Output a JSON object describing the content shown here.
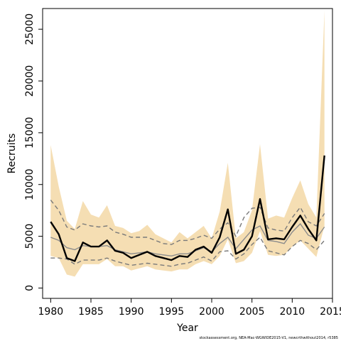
{
  "chart_data": {
    "type": "line",
    "title": "",
    "xlabel": "Year",
    "ylabel": "Recruits",
    "xlim": [
      1979,
      2015
    ],
    "ylim": [
      -1000,
      27000
    ],
    "x_ticks": [
      1980,
      1985,
      1990,
      1995,
      2000,
      2005,
      2010,
      2015
    ],
    "y_ticks": [
      0,
      5000,
      10000,
      15000,
      20000,
      25000
    ],
    "grid": false,
    "legend": "none",
    "x": [
      1980,
      1981,
      1982,
      1983,
      1984,
      1985,
      1986,
      1987,
      1988,
      1989,
      1990,
      1991,
      1992,
      1993,
      1994,
      1995,
      1996,
      1997,
      1998,
      1999,
      2000,
      2001,
      2002,
      2003,
      2004,
      2005,
      2006,
      2007,
      2008,
      2009,
      2010,
      2011,
      2012,
      2013,
      2014
    ],
    "series": [
      {
        "role": "estimate",
        "values": [
          6400,
          5200,
          2900,
          2600,
          4400,
          4000,
          4000,
          4600,
          3600,
          3400,
          2900,
          3200,
          3500,
          3100,
          2900,
          2700,
          3100,
          3000,
          3700,
          4000,
          3400,
          4900,
          7600,
          3300,
          3700,
          5000,
          8600,
          4700,
          4800,
          4700,
          5900,
          7000,
          5700,
          4600,
          12800
        ]
      },
      {
        "role": "band-upper",
        "values": [
          13800,
          9800,
          6500,
          5700,
          8400,
          7100,
          6800,
          8000,
          6000,
          5800,
          5300,
          5500,
          6100,
          5200,
          4800,
          4400,
          5400,
          4800,
          5400,
          6000,
          4800,
          7400,
          12100,
          4800,
          5400,
          7500,
          13900,
          6700,
          7000,
          6800,
          8700,
          10400,
          8100,
          6800,
          26800
        ]
      },
      {
        "role": "band-lower",
        "values": [
          3100,
          2900,
          1300,
          1100,
          2300,
          2300,
          2300,
          2800,
          2100,
          2100,
          1700,
          1900,
          2100,
          1800,
          1700,
          1600,
          1800,
          1800,
          2300,
          2600,
          2300,
          3100,
          4700,
          2400,
          2600,
          3400,
          5500,
          3200,
          3100,
          3200,
          4000,
          4600,
          3800,
          3000,
          6000
        ]
      },
      {
        "role": "dashed-upper",
        "values": [
          8500,
          7500,
          5900,
          5600,
          6200,
          6000,
          5900,
          6000,
          5400,
          5200,
          4900,
          4900,
          4900,
          4600,
          4300,
          4200,
          4600,
          4600,
          4800,
          5100,
          4800,
          5700,
          6300,
          5000,
          6800,
          7700,
          7800,
          5800,
          5600,
          5500,
          6800,
          7800,
          6400,
          6000,
          7200
        ]
      },
      {
        "role": "dashed-lower",
        "values": [
          2900,
          2900,
          2800,
          2300,
          2700,
          2700,
          2700,
          2900,
          2600,
          2400,
          2200,
          2300,
          2400,
          2300,
          2200,
          2100,
          2300,
          2400,
          2700,
          3000,
          2600,
          3500,
          3600,
          2800,
          3300,
          4200,
          4900,
          3600,
          3400,
          3200,
          4000,
          4600,
          4300,
          3700,
          4600
        ]
      },
      {
        "role": "median-gray",
        "values": [
          4900,
          4600,
          3900,
          3700,
          4100,
          4000,
          4000,
          4100,
          3700,
          3500,
          3300,
          3400,
          3500,
          3300,
          3200,
          3100,
          3300,
          3300,
          3600,
          3900,
          3500,
          4300,
          4900,
          3800,
          4700,
          5600,
          6000,
          4600,
          4500,
          4300,
          5400,
          6200,
          5100,
          4800,
          5900
        ]
      }
    ],
    "colors": {
      "band": "#f5deb3",
      "estimate": "#000000",
      "dashed": "#7a7a7a",
      "median": "#8c8c8c",
      "axis": "#000000"
    },
    "footnote": "stockassessment.org, NEA-Mac-WGWIDE2015-V1, newcrthwithout2014, r5385"
  }
}
